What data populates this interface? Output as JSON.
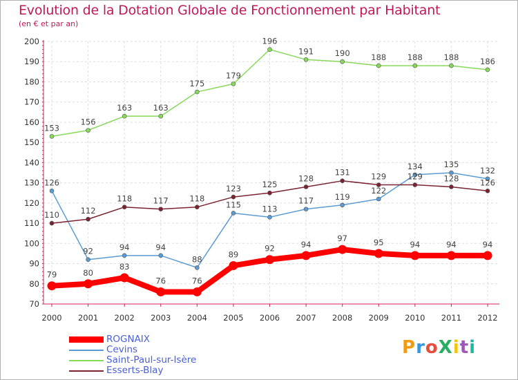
{
  "header": {
    "title": "Evolution de la Dotation Globale de Fonctionnement par Habitant",
    "subtitle": "(en € et par an)"
  },
  "logo": {
    "text": "ProXiti",
    "colors": [
      "#f39c12",
      "#3498db",
      "#e74c3c",
      "#27ae60",
      "#f1c40f",
      "#9b59b6",
      "#1abc9c"
    ]
  },
  "chart_data": {
    "type": "line",
    "x": [
      "2000",
      "2001",
      "2002",
      "2003",
      "2004",
      "2005",
      "2006",
      "2007",
      "2008",
      "2009",
      "2010",
      "2011",
      "2012"
    ],
    "ylim": [
      70,
      200
    ],
    "yticks": [
      70,
      80,
      90,
      100,
      110,
      120,
      130,
      140,
      150,
      160,
      170,
      180,
      190,
      200
    ],
    "grid": true,
    "legend_position": "bottom-left",
    "series": [
      {
        "name": "Saint-Paul-sur-Isère",
        "color": "#88d85a",
        "values": [
          153,
          156,
          163,
          163,
          175,
          179,
          196,
          191,
          190,
          188,
          188,
          188,
          186
        ]
      },
      {
        "name": "Cevins",
        "color": "#5a9bd4",
        "values": [
          126,
          92,
          94,
          94,
          88,
          115,
          113,
          117,
          119,
          122,
          134,
          135,
          132
        ]
      },
      {
        "name": "Esserts-Blay",
        "color": "#7a2230",
        "values": [
          110,
          112,
          118,
          117,
          118,
          123,
          125,
          128,
          131,
          129,
          129,
          128,
          126
        ]
      },
      {
        "name": "ROGNAIX",
        "color": "#ff0000",
        "values": [
          79,
          80,
          83,
          76,
          76,
          89,
          92,
          94,
          97,
          95,
          94,
          94,
          94
        ]
      }
    ],
    "legend": [
      "ROGNAIX",
      "Cevins",
      "Saint-Paul-sur-Isère",
      "Esserts-Blay"
    ]
  }
}
